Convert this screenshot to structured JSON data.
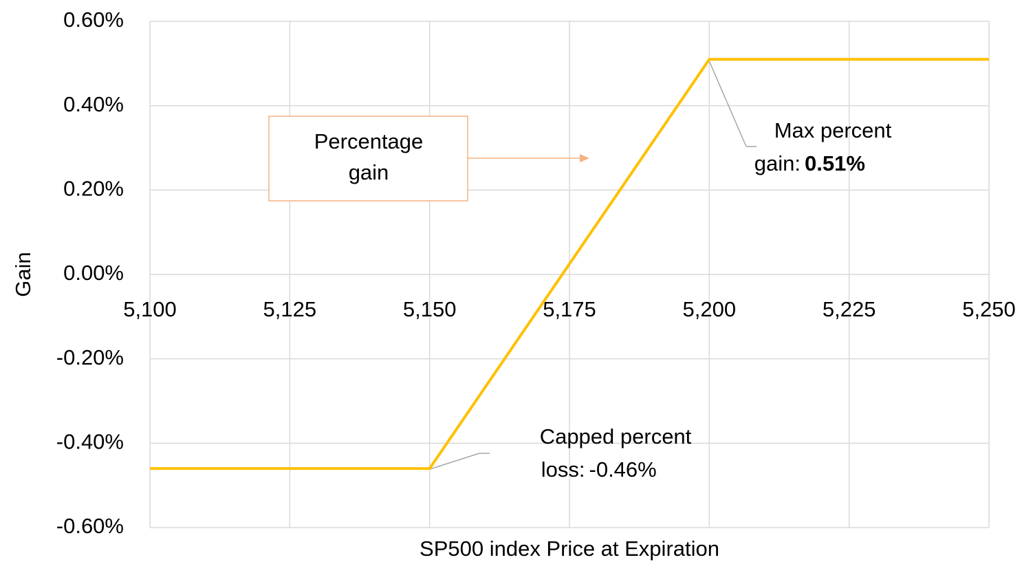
{
  "chart_data": {
    "type": "line",
    "x_label": "SP500 index Price at Expiration",
    "y_label": "Gain",
    "x": [
      5100,
      5150,
      5200,
      5250
    ],
    "series": [
      {
        "name": "Percentage gain",
        "color": "#ffc000",
        "values": [
          -0.46,
          -0.46,
          0.51,
          0.51
        ],
        "value_labels": [
          null,
          "-0.46%",
          "0.51%",
          null
        ]
      }
    ],
    "xlim": [
      5100,
      5250
    ],
    "xticks": [
      {
        "value": 5100,
        "label": "5,100"
      },
      {
        "value": 5125,
        "label": "5,125"
      },
      {
        "value": 5150,
        "label": "5,150"
      },
      {
        "value": 5175,
        "label": "5,175"
      },
      {
        "value": 5200,
        "label": "5,200"
      },
      {
        "value": 5225,
        "label": "5,225"
      },
      {
        "value": 5250,
        "label": "5,250"
      }
    ],
    "ylim": [
      -0.6,
      0.6
    ],
    "yticks": [
      {
        "value": -0.6,
        "label": "-0.60%"
      },
      {
        "value": -0.4,
        "label": "-0.40%"
      },
      {
        "value": -0.2,
        "label": "-0.20%"
      },
      {
        "value": 0,
        "label": "0.00%"
      },
      {
        "value": 0.2,
        "label": "0.20%"
      },
      {
        "value": 0.4,
        "label": "0.40%"
      },
      {
        "value": 0.6,
        "label": "0.60%"
      }
    ],
    "grid": true,
    "annotations": [
      {
        "lines": [
          "Capped percent",
          "loss:"
        ],
        "point": 1,
        "label_color": "#ff0000"
      },
      {
        "lines": [
          "Max percent",
          "gain:"
        ],
        "point": 2,
        "label_color": "#2878a8"
      }
    ]
  }
}
